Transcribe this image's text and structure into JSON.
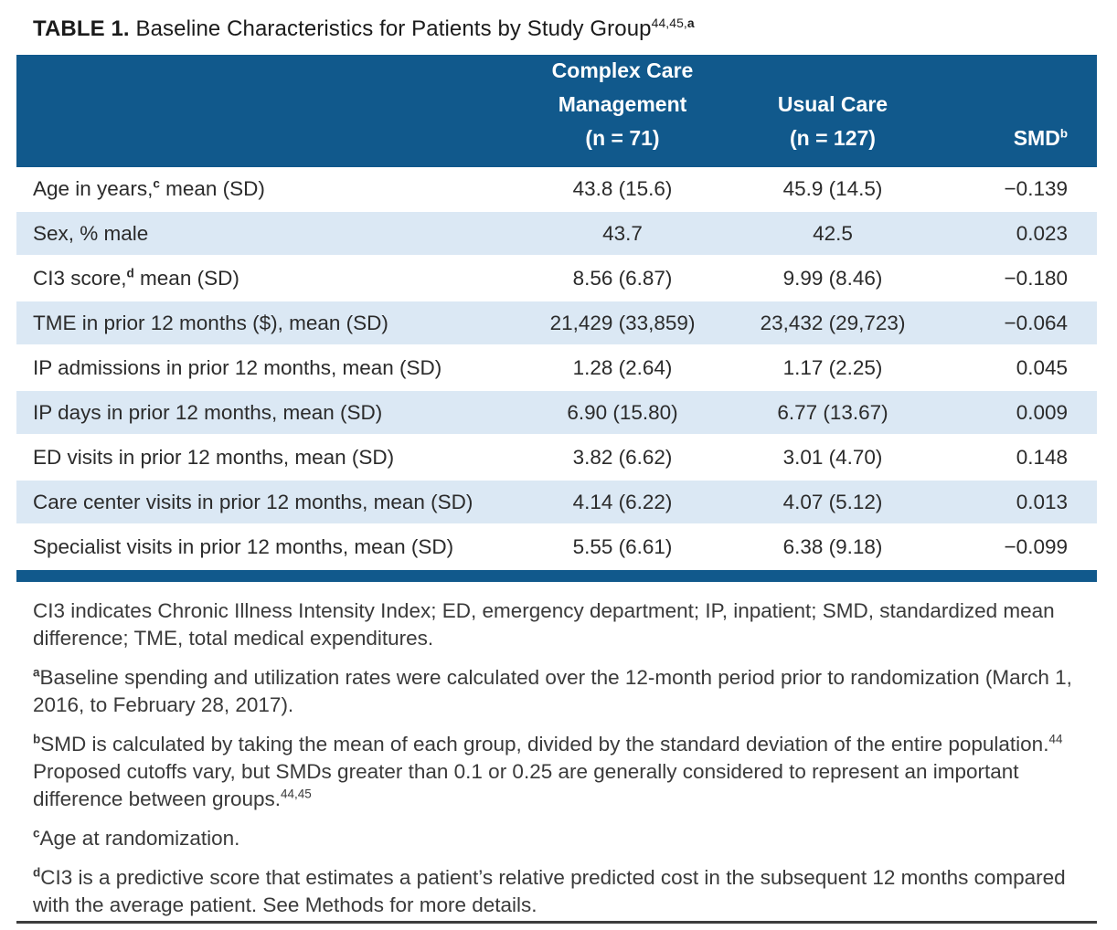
{
  "title": {
    "prefix": "TABLE 1.",
    "text": " Baseline Characteristics for Patients by Study Group",
    "sup_refs": "44,45,",
    "sup_marker": "a"
  },
  "colors": {
    "header_blue": "#11598C",
    "row_alt_blue": "#DBE8F4"
  },
  "table": {
    "header": {
      "ccm_line1": "Complex Care",
      "ccm_line2": "Management",
      "ccm_line3": "(n = 71)",
      "uc_line1": "Usual Care",
      "uc_line2": "(n = 127)",
      "smd": "SMD",
      "smd_sup": "b"
    },
    "rows": [
      {
        "label_pre": "Age in years,",
        "label_sup": "c",
        "label_post": " mean (SD)",
        "ccm": "43.8 (15.6)",
        "uc": "45.9 (14.5)",
        "smd": "−0.139"
      },
      {
        "label_pre": "Sex, % male",
        "label_sup": "",
        "label_post": "",
        "ccm": "43.7",
        "uc": "42.5",
        "smd": "0.023"
      },
      {
        "label_pre": "CI3 score,",
        "label_sup": "d",
        "label_post": " mean (SD)",
        "ccm": "8.56 (6.87)",
        "uc": "9.99 (8.46)",
        "smd": "−0.180"
      },
      {
        "label_pre": "TME in prior 12 months ($), mean (SD)",
        "label_sup": "",
        "label_post": "",
        "ccm": "21,429 (33,859)",
        "uc": "23,432 (29,723)",
        "smd": "−0.064"
      },
      {
        "label_pre": "IP admissions in prior 12 months, mean (SD)",
        "label_sup": "",
        "label_post": "",
        "ccm": "1.28 (2.64)",
        "uc": "1.17 (2.25)",
        "smd": "0.045"
      },
      {
        "label_pre": "IP days in prior 12 months, mean (SD)",
        "label_sup": "",
        "label_post": "",
        "ccm": "6.90 (15.80)",
        "uc": "6.77 (13.67)",
        "smd": "0.009"
      },
      {
        "label_pre": "ED visits in prior 12 months, mean (SD)",
        "label_sup": "",
        "label_post": "",
        "ccm": "3.82 (6.62)",
        "uc": "3.01 (4.70)",
        "smd": "0.148"
      },
      {
        "label_pre": "Care center visits in prior 12 months, mean (SD)",
        "label_sup": "",
        "label_post": "",
        "ccm": "4.14 (6.22)",
        "uc": "4.07 (5.12)",
        "smd": "0.013"
      },
      {
        "label_pre": "Specialist visits in prior 12 months, mean (SD)",
        "label_sup": "",
        "label_post": "",
        "ccm": "5.55 (6.61)",
        "uc": "6.38 (9.18)",
        "smd": "−0.099"
      }
    ]
  },
  "footnotes": [
    {
      "marker": "",
      "text1": "CI3 indicates Chronic Illness Intensity Index; ED, emergency department; IP, inpatient; SMD, standardized mean difference; TME, total medical expenditures.",
      "sup1": "",
      "text2": "",
      "sup2": ""
    },
    {
      "marker": "a",
      "text1": "Baseline spending and utilization rates were calculated over the 12-month period prior to randomization (March 1, 2016, to February 28, 2017).",
      "sup1": "",
      "text2": "",
      "sup2": ""
    },
    {
      "marker": "b",
      "text1": "SMD is calculated by taking the mean of each group, divided by the standard deviation of the entire population.",
      "sup1": "44",
      "text2": " Proposed cutoffs vary, but SMDs greater than 0.1 or 0.25 are generally considered to represent an important difference between groups.",
      "sup2": "44,45"
    },
    {
      "marker": "c",
      "text1": "Age at randomization.",
      "sup1": "",
      "text2": "",
      "sup2": ""
    },
    {
      "marker": "d",
      "text1": "CI3 is a predictive score that estimates a patient’s relative predicted cost in the subsequent 12 months compared with the average patient. See Methods for more details.",
      "sup1": "",
      "text2": "",
      "sup2": ""
    }
  ]
}
